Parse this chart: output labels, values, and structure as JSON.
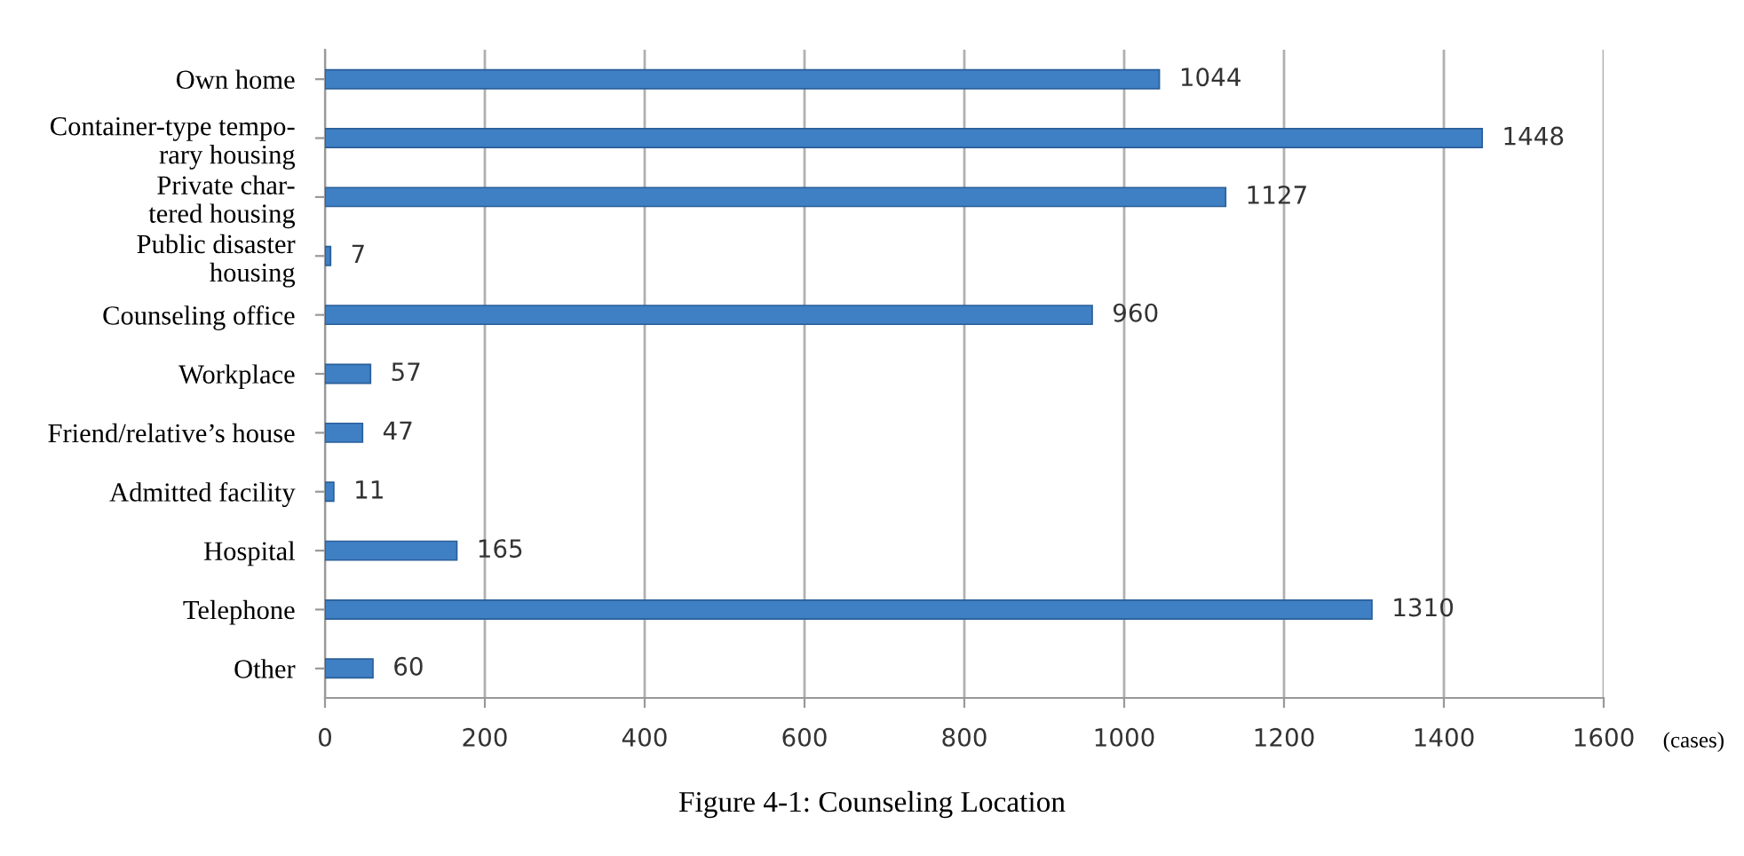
{
  "chart_data": {
    "type": "bar",
    "orientation": "horizontal",
    "title": "Figure 4-1: Counseling Location",
    "xlabel": "(cases)",
    "categories": [
      "Own home",
      "Container-type tempo-\nrary housing",
      "Private char-\ntered housing",
      "Public disaster\nhousing",
      "Counseling office",
      "Workplace",
      "Friend/relative’s house",
      "Admitted facility",
      "Hospital",
      "Telephone",
      "Other"
    ],
    "values": [
      1044,
      1448,
      1127,
      7,
      960,
      57,
      47,
      11,
      165,
      1310,
      60
    ],
    "color": "#3f7fc4",
    "xlim": [
      0,
      1600
    ],
    "xticks": [
      0,
      200,
      400,
      600,
      800,
      1000,
      1200,
      1400,
      1600
    ],
    "grid": "x",
    "data_labels": true
  }
}
